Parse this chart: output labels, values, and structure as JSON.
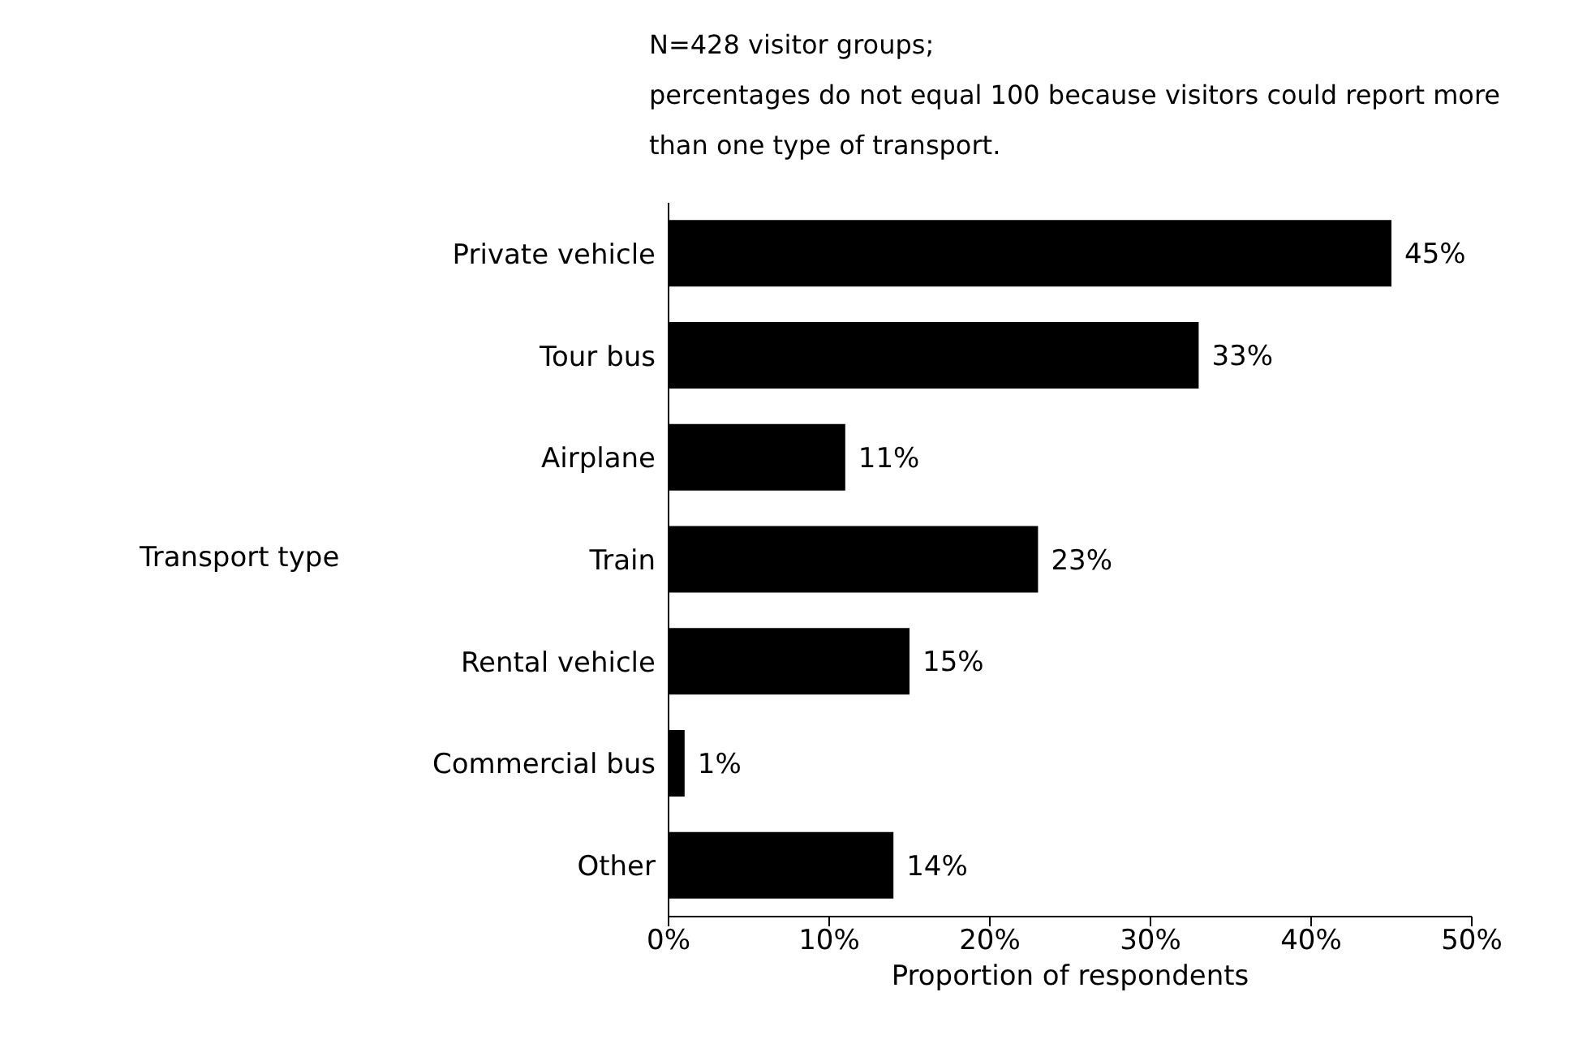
{
  "chart_data": {
    "type": "bar",
    "orientation": "horizontal",
    "annotations": [
      "N=428 visitor groups;",
      "percentages do not equal 100 because visitors could report more than one type of transport."
    ],
    "xlabel": "Proportion of respondents",
    "ylabel": "Transport type",
    "categories": [
      "Private vehicle",
      "Tour bus",
      "Airplane",
      "Train",
      "Rental vehicle",
      "Commercial bus",
      "Other"
    ],
    "values": [
      45,
      33,
      11,
      23,
      15,
      1,
      14
    ],
    "value_labels": [
      "45%",
      "33%",
      "11%",
      "23%",
      "15%",
      "1%",
      "14%"
    ],
    "color": "#000000",
    "xlim": [
      0,
      50
    ],
    "xticks": [
      {
        "value": 0,
        "label": "0%"
      },
      {
        "value": 10,
        "label": "10%"
      },
      {
        "value": 20,
        "label": "20%"
      },
      {
        "value": 30,
        "label": "30%"
      },
      {
        "value": 40,
        "label": "40%"
      },
      {
        "value": 50,
        "label": "50%"
      }
    ],
    "grid": false
  }
}
